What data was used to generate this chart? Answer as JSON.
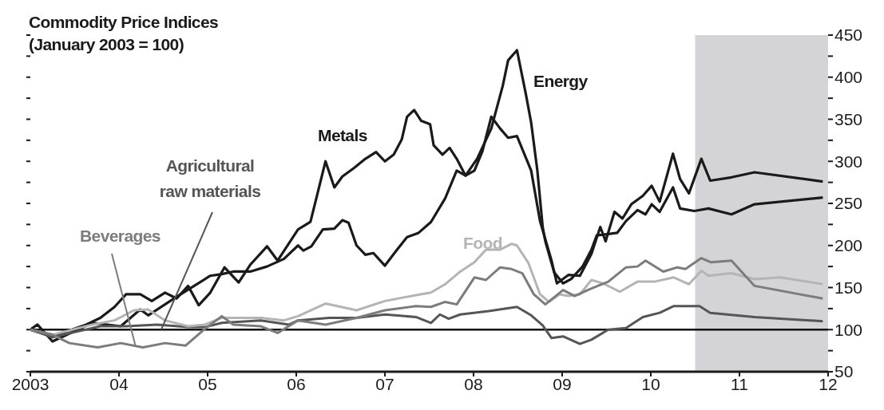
{
  "chart_data": {
    "type": "line",
    "title": "Commodity Price Indices",
    "subtitle": "(January 2003 = 100)",
    "xlim": [
      2003,
      2012
    ],
    "xticks": [
      {
        "value": 2003,
        "label": "2003"
      },
      {
        "value": 2004,
        "label": "04"
      },
      {
        "value": 2005,
        "label": "05"
      },
      {
        "value": 2006,
        "label": "06"
      },
      {
        "value": 2007,
        "label": "07"
      },
      {
        "value": 2008,
        "label": "08"
      },
      {
        "value": 2009,
        "label": "09"
      },
      {
        "value": 2010,
        "label": "10"
      },
      {
        "value": 2011,
        "label": "11"
      },
      {
        "value": 2012,
        "label": "12"
      }
    ],
    "ylim": [
      50,
      450
    ],
    "yticks": [
      50,
      {
        "value": 75,
        "label": null
      },
      100,
      {
        "value": 125,
        "label": null
      },
      150,
      {
        "value": 175,
        "label": null
      },
      200,
      {
        "value": 225,
        "label": null
      },
      250,
      {
        "value": 275,
        "label": null
      },
      300,
      {
        "value": 325,
        "label": null
      },
      350,
      {
        "value": 375,
        "label": null
      },
      400,
      {
        "value": 425,
        "label": null
      },
      450
    ],
    "marker": "none",
    "line_style": "solid",
    "ref_lines": [
      {
        "axis": "y",
        "value": 100,
        "color": "#111111"
      }
    ],
    "bands": [
      {
        "axis": "x",
        "from": 2010.5,
        "to": 2012,
        "color": "#d4d4d6"
      }
    ],
    "series": [
      {
        "name": "Metals",
        "color": "#1a1a1a",
        "x": [
          2003.0,
          2003.25,
          2003.63,
          2003.79,
          2003.95,
          2004.08,
          2004.24,
          2004.37,
          2004.52,
          2004.65,
          2004.78,
          2004.9,
          2005.03,
          2005.19,
          2005.35,
          2005.48,
          2005.67,
          2005.79,
          2006.02,
          2006.16,
          2006.33,
          2006.43,
          2006.52,
          2006.65,
          2006.78,
          2006.9,
          2007.0,
          2007.1,
          2007.19,
          2007.25,
          2007.33,
          2007.41,
          2007.51,
          2007.55,
          2007.65,
          2007.73,
          2007.81,
          2007.91,
          2008.01,
          2008.1,
          2008.2,
          2008.3,
          2008.39,
          2008.49,
          2008.65,
          2008.75,
          2008.88,
          2008.94,
          2009.07,
          2009.2,
          2009.33,
          2009.43,
          2009.49,
          2009.59,
          2009.68,
          2009.78,
          2009.91,
          2010.01,
          2010.1,
          2010.25,
          2010.33,
          2010.43,
          2010.57,
          2010.67,
          2010.91,
          2011.17,
          2011.94
        ],
        "values": [
          100,
          92,
          106,
          114,
          127,
          142,
          142,
          134,
          144,
          137,
          152,
          129,
          144,
          174,
          156,
          177,
          199,
          182,
          219,
          228,
          300,
          269,
          282,
          292,
          303,
          311,
          300,
          308,
          326,
          353,
          361,
          348,
          344,
          319,
          308,
          316,
          303,
          283,
          289,
          312,
          353,
          339,
          328,
          330,
          289,
          229,
          182,
          155,
          165,
          164,
          190,
          222,
          205,
          240,
          232,
          249,
          259,
          271,
          252,
          309,
          279,
          262,
          303,
          277,
          281,
          287,
          276
        ]
      },
      {
        "name": "Energy",
        "color": "#1a1a1a",
        "x": [
          2003.0,
          2003.08,
          2003.25,
          2003.7,
          2004.02,
          2004.24,
          2004.33,
          2004.65,
          2005.03,
          2005.16,
          2005.29,
          2005.48,
          2005.67,
          2005.86,
          2006.02,
          2006.08,
          2006.17,
          2006.3,
          2006.43,
          2006.52,
          2006.59,
          2006.68,
          2006.78,
          2006.87,
          2007.0,
          2007.13,
          2007.25,
          2007.38,
          2007.52,
          2007.68,
          2007.81,
          2007.91,
          2008.04,
          2008.2,
          2008.33,
          2008.39,
          2008.49,
          2008.59,
          2008.65,
          2008.72,
          2008.78,
          2008.81,
          2008.91,
          2009.01,
          2009.1,
          2009.23,
          2009.33,
          2009.39,
          2009.62,
          2009.72,
          2009.85,
          2009.94,
          2010.01,
          2010.1,
          2010.25,
          2010.33,
          2010.49,
          2010.65,
          2010.91,
          2011.17,
          2011.94
        ],
        "values": [
          100,
          106,
          86,
          108,
          104,
          124,
          117,
          139,
          164,
          166,
          169,
          169,
          175,
          184,
          200,
          194,
          199,
          219,
          220,
          230,
          227,
          200,
          189,
          191,
          176,
          194,
          210,
          215,
          228,
          256,
          289,
          283,
          303,
          339,
          390,
          420,
          432,
          380,
          346,
          289,
          222,
          205,
          168,
          155,
          160,
          175,
          195,
          212,
          215,
          229,
          242,
          237,
          249,
          240,
          269,
          244,
          241,
          244,
          237,
          249,
          257
        ]
      },
      {
        "name": "Agricultural raw materials",
        "color": "#555555",
        "x": [
          2003.0,
          2003.25,
          2003.54,
          2003.79,
          2004.08,
          2004.43,
          2004.78,
          2004.97,
          2005.16,
          2005.6,
          2005.92,
          2006.02,
          2006.37,
          2006.68,
          2007.0,
          2007.35,
          2007.52,
          2007.62,
          2007.72,
          2007.85,
          2008.17,
          2008.49,
          2008.65,
          2008.78,
          2008.88,
          2009.01,
          2009.2,
          2009.33,
          2009.52,
          2009.72,
          2009.91,
          2010.1,
          2010.26,
          2010.55,
          2010.67,
          2011.17,
          2011.94
        ],
        "values": [
          100,
          91,
          98,
          104,
          104,
          106,
          103,
          103,
          108,
          111,
          106,
          111,
          114,
          114,
          118,
          115,
          108,
          118,
          113,
          118,
          122,
          127,
          117,
          105,
          90,
          92,
          83,
          88,
          100,
          102,
          115,
          120,
          128,
          128,
          120,
          115,
          110
        ]
      },
      {
        "name": "Food",
        "color": "#b4b4b4",
        "x": [
          2003.0,
          2003.25,
          2003.7,
          2003.95,
          2004.17,
          2004.33,
          2004.52,
          2004.78,
          2004.97,
          2005.16,
          2005.6,
          2005.86,
          2006.02,
          2006.33,
          2006.68,
          2007.0,
          2007.35,
          2007.52,
          2007.68,
          2007.85,
          2008.01,
          2008.14,
          2008.3,
          2008.43,
          2008.49,
          2008.62,
          2008.75,
          2008.85,
          2008.97,
          2009.07,
          2009.2,
          2009.33,
          2009.46,
          2009.65,
          2009.85,
          2010.04,
          2010.26,
          2010.43,
          2010.57,
          2010.65,
          2010.91,
          2011.17,
          2011.46,
          2011.94
        ],
        "values": [
          100,
          94,
          106,
          111,
          123,
          124,
          111,
          104,
          106,
          114,
          114,
          111,
          116,
          131,
          123,
          134,
          141,
          144,
          154,
          169,
          180,
          195,
          195,
          202,
          200,
          179,
          142,
          133,
          142,
          140,
          142,
          159,
          155,
          145,
          157,
          157,
          162,
          154,
          170,
          164,
          167,
          160,
          162,
          154
        ]
      },
      {
        "name": "Beverages",
        "color": "#7c7c7c",
        "x": [
          2003.0,
          2003.25,
          2003.44,
          2003.76,
          2004.02,
          2004.27,
          2004.52,
          2004.75,
          2004.97,
          2005.16,
          2005.29,
          2005.6,
          2005.79,
          2006.02,
          2006.33,
          2006.68,
          2007.0,
          2007.35,
          2007.52,
          2007.68,
          2007.81,
          2008.01,
          2008.14,
          2008.3,
          2008.43,
          2008.55,
          2008.68,
          2008.81,
          2009.01,
          2009.14,
          2009.33,
          2009.52,
          2009.72,
          2009.85,
          2009.94,
          2010.14,
          2010.3,
          2010.39,
          2010.57,
          2010.68,
          2010.91,
          2011.17,
          2011.94
        ],
        "values": [
          100,
          94,
          84,
          79,
          84,
          79,
          84,
          81,
          101,
          116,
          106,
          104,
          96,
          111,
          106,
          114,
          123,
          128,
          127,
          133,
          130,
          162,
          159,
          174,
          172,
          167,
          142,
          130,
          147,
          140,
          149,
          157,
          174,
          175,
          182,
          169,
          174,
          172,
          185,
          180,
          182,
          152,
          137
        ]
      }
    ]
  }
}
